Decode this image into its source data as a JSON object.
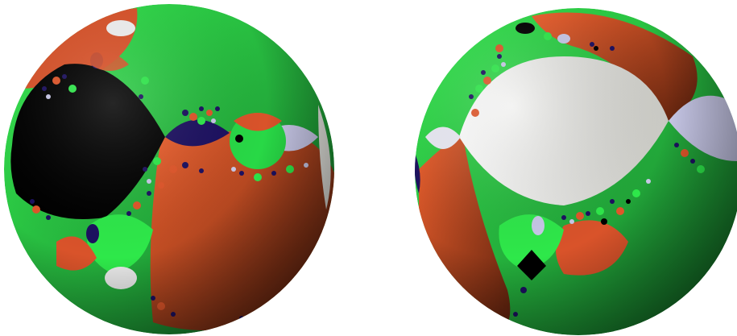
{
  "colors": {
    "background": "#ffffff",
    "green": "#2ee84a",
    "green_dark": "#1a8a2c",
    "orange": "#e0562a",
    "orange_dark": "#6a2410",
    "black": "#000000",
    "navy": "#1c1060",
    "lavender": "#c8c8e8",
    "white": "#f4f4f0"
  },
  "icons": [
    "fractal-sphere-left",
    "fractal-sphere-right"
  ]
}
